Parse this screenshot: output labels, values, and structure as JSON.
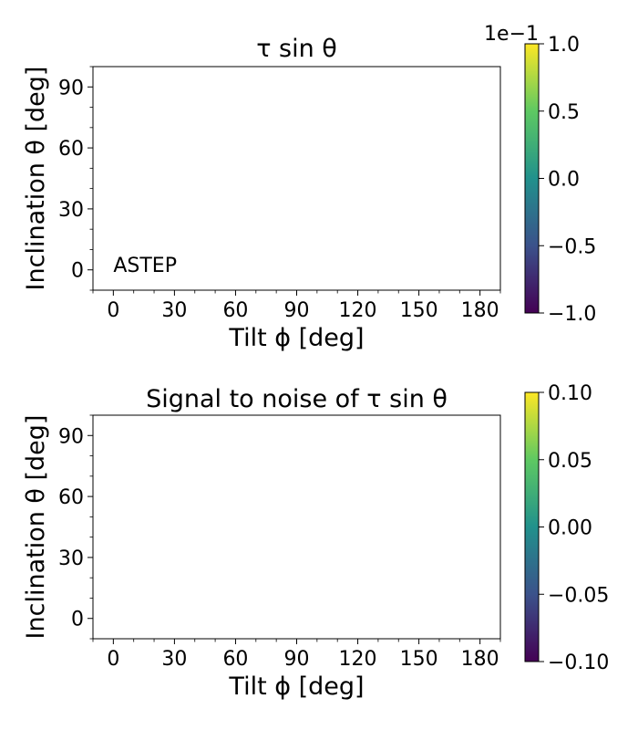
{
  "chart_data": [
    {
      "type": "heatmap",
      "title": "τ sin θ",
      "xlabel": "Tilt ϕ [deg]",
      "ylabel": "Inclination θ [deg]",
      "xlim": [
        -10,
        190
      ],
      "ylim": [
        -10,
        100
      ],
      "xticks": [
        0,
        30,
        60,
        90,
        120,
        150,
        180
      ],
      "xtick_labels": [
        "0",
        "30",
        "60",
        "90",
        "120",
        "150",
        "180"
      ],
      "yticks": [
        0,
        30,
        60,
        90
      ],
      "ytick_labels": [
        "0",
        "30",
        "60",
        "90"
      ],
      "annotation": "ASTEP",
      "values": [],
      "colorbar": {
        "colormap": "viridis",
        "min": -1.0,
        "max": 1.0,
        "ticks": [
          -1.0,
          -0.5,
          0.0,
          0.5,
          1.0
        ],
        "tick_labels": [
          "−1.0",
          "−0.5",
          "0.0",
          "0.5",
          "1.0"
        ],
        "offset_label": "1e−1"
      }
    },
    {
      "type": "heatmap",
      "title": "Signal to noise of τ sin θ",
      "xlabel": "Tilt ϕ [deg]",
      "ylabel": "Inclination θ [deg]",
      "xlim": [
        -10,
        190
      ],
      "ylim": [
        -10,
        100
      ],
      "xticks": [
        0,
        30,
        60,
        90,
        120,
        150,
        180
      ],
      "xtick_labels": [
        "0",
        "30",
        "60",
        "90",
        "120",
        "150",
        "180"
      ],
      "yticks": [
        0,
        30,
        60,
        90
      ],
      "ytick_labels": [
        "0",
        "30",
        "60",
        "90"
      ],
      "values": [],
      "colorbar": {
        "colormap": "viridis",
        "min": -0.1,
        "max": 0.1,
        "ticks": [
          -0.1,
          -0.05,
          0.0,
          0.05,
          0.1
        ],
        "tick_labels": [
          "−0.10",
          "−0.05",
          "0.00",
          "0.05",
          "0.10"
        ],
        "offset_label": ""
      }
    }
  ],
  "colors": {
    "viridis": [
      "#440154",
      "#3b528b",
      "#21918c",
      "#5ec962",
      "#fde725"
    ]
  }
}
